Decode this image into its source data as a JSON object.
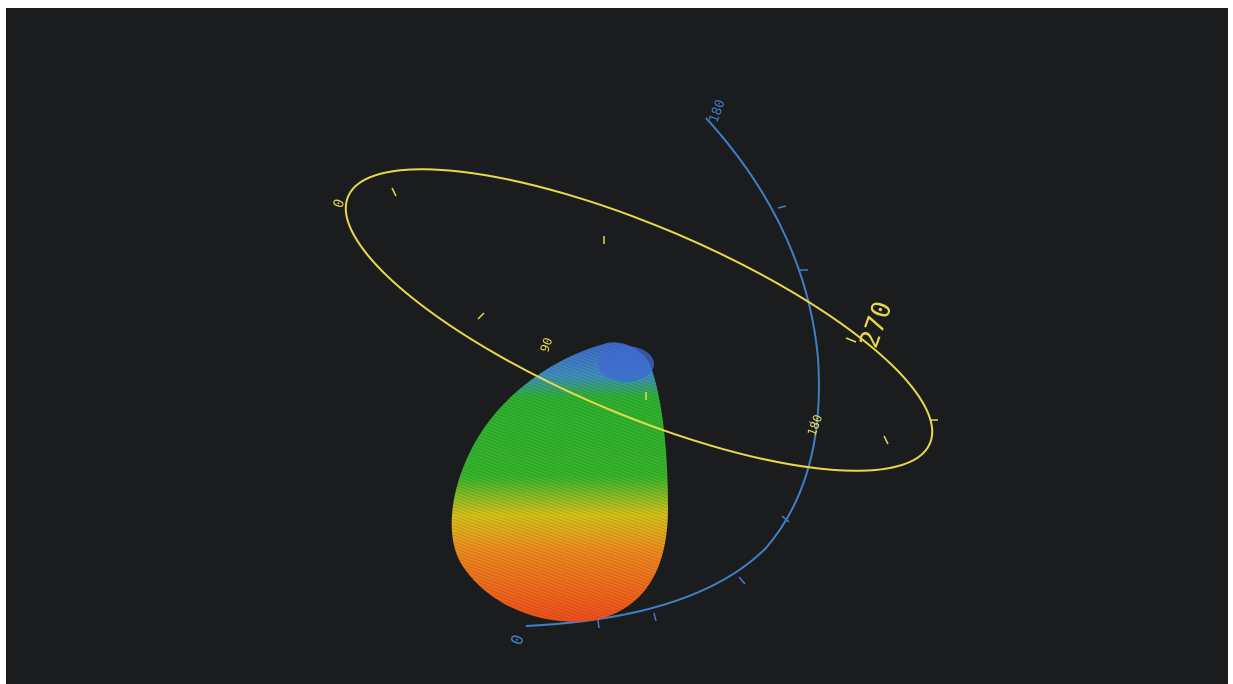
{
  "viewport": {
    "background": "#1b1c1e",
    "content": "3d-antenna-radiation-pattern"
  },
  "azimuth_ring": {
    "color": "#e8d84a",
    "labels": {
      "deg_0": "0",
      "deg_90": "90",
      "deg_180": "180",
      "deg_270": "270"
    }
  },
  "elevation_arc": {
    "color": "#3f7fc6",
    "labels": {
      "top": "180",
      "bottom": "0"
    }
  },
  "radiation_lobe": {
    "colors": {
      "low": "#3f67c8",
      "mid": "#2fb22f",
      "high_mid": "#d7c21a",
      "high": "#ef5a1c"
    }
  }
}
